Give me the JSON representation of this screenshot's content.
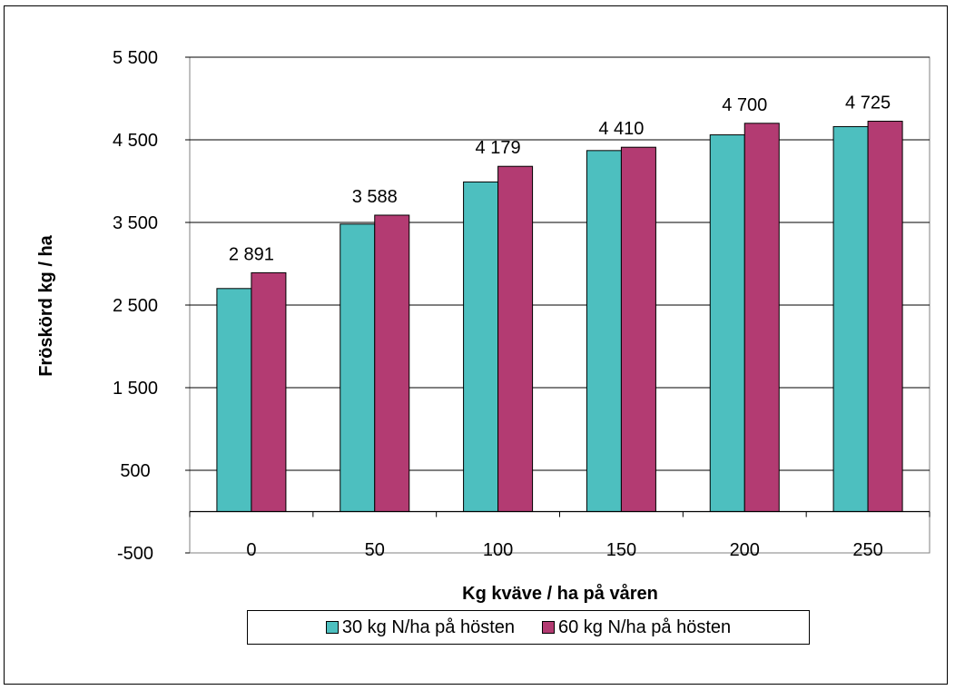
{
  "chart_data": {
    "type": "bar",
    "categories": [
      "0",
      "50",
      "100",
      "150",
      "200",
      "250"
    ],
    "series": [
      {
        "name": "30 kg N/ha på hösten",
        "color": "#4dbfbf",
        "values": [
          2700,
          3480,
          3990,
          4370,
          4560,
          4660
        ]
      },
      {
        "name": "60 kg N/ha på hösten",
        "color": "#b33b72",
        "values": [
          2891,
          3588,
          4179,
          4410,
          4700,
          4725
        ]
      }
    ],
    "data_labels": [
      "2 891",
      "3 588",
      "4 179",
      "4 410",
      "4 700",
      "4 725"
    ],
    "xlabel": "Kg kväve / ha på våren",
    "ylabel": "Fröskörd kg / ha",
    "yticks": [
      -500,
      500,
      1500,
      2500,
      3500,
      4500,
      5500
    ],
    "ytick_labels": [
      "-500",
      "500",
      "1 500",
      "2 500",
      "3 500",
      "4 500",
      "5 500"
    ],
    "ylim": [
      -500,
      5500
    ],
    "grid": true,
    "legend_position": "bottom"
  }
}
